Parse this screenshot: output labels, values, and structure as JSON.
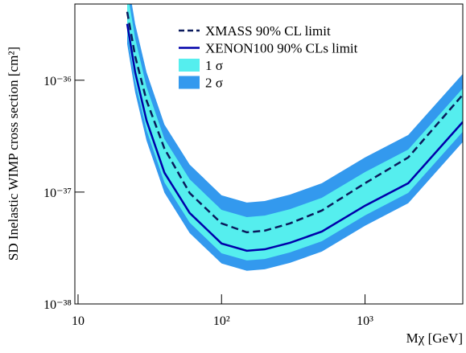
{
  "chart_data": {
    "type": "line",
    "x_label": "Mχ  [GeV]",
    "y_label": "SD Inelastic WIMP cross section  [cm²]",
    "log_x": true,
    "log_y": true,
    "xlim": [
      9.5,
      4800
    ],
    "ylim": [
      1e-38,
      4.8e-36
    ],
    "xticks": [
      10,
      {
        "value": 100,
        "label": "10²"
      },
      {
        "value": 1000,
        "label": "10³"
      }
    ],
    "yticks": [
      {
        "value": 1e-38,
        "label": "10⁻³⁸"
      },
      {
        "value": 1e-37,
        "label": "10⁻³⁷"
      },
      {
        "value": 1e-36,
        "label": "10⁻³⁶"
      }
    ],
    "legend": "top-right",
    "x": [
      22,
      25,
      30,
      40,
      60,
      100,
      150,
      200,
      300,
      500,
      1000,
      2000,
      4800
    ],
    "bands": [
      {
        "name": "2 σ",
        "color": "#3399ee",
        "upper": [
          8.6e-36,
          3.19e-36,
          1.18e-36,
          4.02e-37,
          1.76e-37,
          9.37e-38,
          8.07e-38,
          8.32e-38,
          9.5e-38,
          1.2e-37,
          2.04e-37,
          3.24e-37,
          1.14e-36
        ],
        "lower": [
          2.11e-36,
          7.81e-37,
          2.89e-37,
          9.87e-38,
          4.3e-38,
          2.3e-38,
          1.98e-38,
          2.04e-38,
          2.33e-38,
          2.94e-38,
          5e-38,
          7.95e-38,
          2.8e-37
        ]
      },
      {
        "name": "1 σ",
        "color": "#55eeee",
        "upper": [
          6.38e-36,
          2.36e-36,
          8.74e-37,
          2.98e-37,
          1.3e-37,
          6.94e-38,
          5.98e-38,
          6.16e-38,
          7.04e-38,
          8.88e-38,
          1.51e-37,
          2.4e-37,
          8.46e-37
        ],
        "lower": [
          2.61e-36,
          9.67e-37,
          3.58e-37,
          1.22e-37,
          5.33e-38,
          2.84e-38,
          2.45e-38,
          2.52e-38,
          2.89e-38,
          3.64e-38,
          6.19e-38,
          9.84e-38,
          3.47e-37
        ]
      }
    ],
    "series": [
      {
        "name": "XMASS   90% CL limit",
        "color": "#0a1a5c",
        "dashed": true,
        "values": [
          4.09e-36,
          1.64e-36,
          6.6e-37,
          2.45e-37,
          9.8e-38,
          5.25e-38,
          4.37e-38,
          4.52e-38,
          5.25e-38,
          6.84e-38,
          1.2e-37,
          2.04e-37,
          7.42e-37
        ]
      },
      {
        "name": "XENON100  90% CLs limit",
        "color": "#0000aa",
        "dashed": false,
        "values": [
          3.19e-36,
          1.18e-36,
          4.37e-37,
          1.49e-37,
          6.5e-38,
          3.47e-38,
          2.99e-38,
          3.08e-38,
          3.52e-38,
          4.44e-38,
          7.55e-38,
          1.2e-37,
          4.23e-37
        ]
      }
    ]
  }
}
